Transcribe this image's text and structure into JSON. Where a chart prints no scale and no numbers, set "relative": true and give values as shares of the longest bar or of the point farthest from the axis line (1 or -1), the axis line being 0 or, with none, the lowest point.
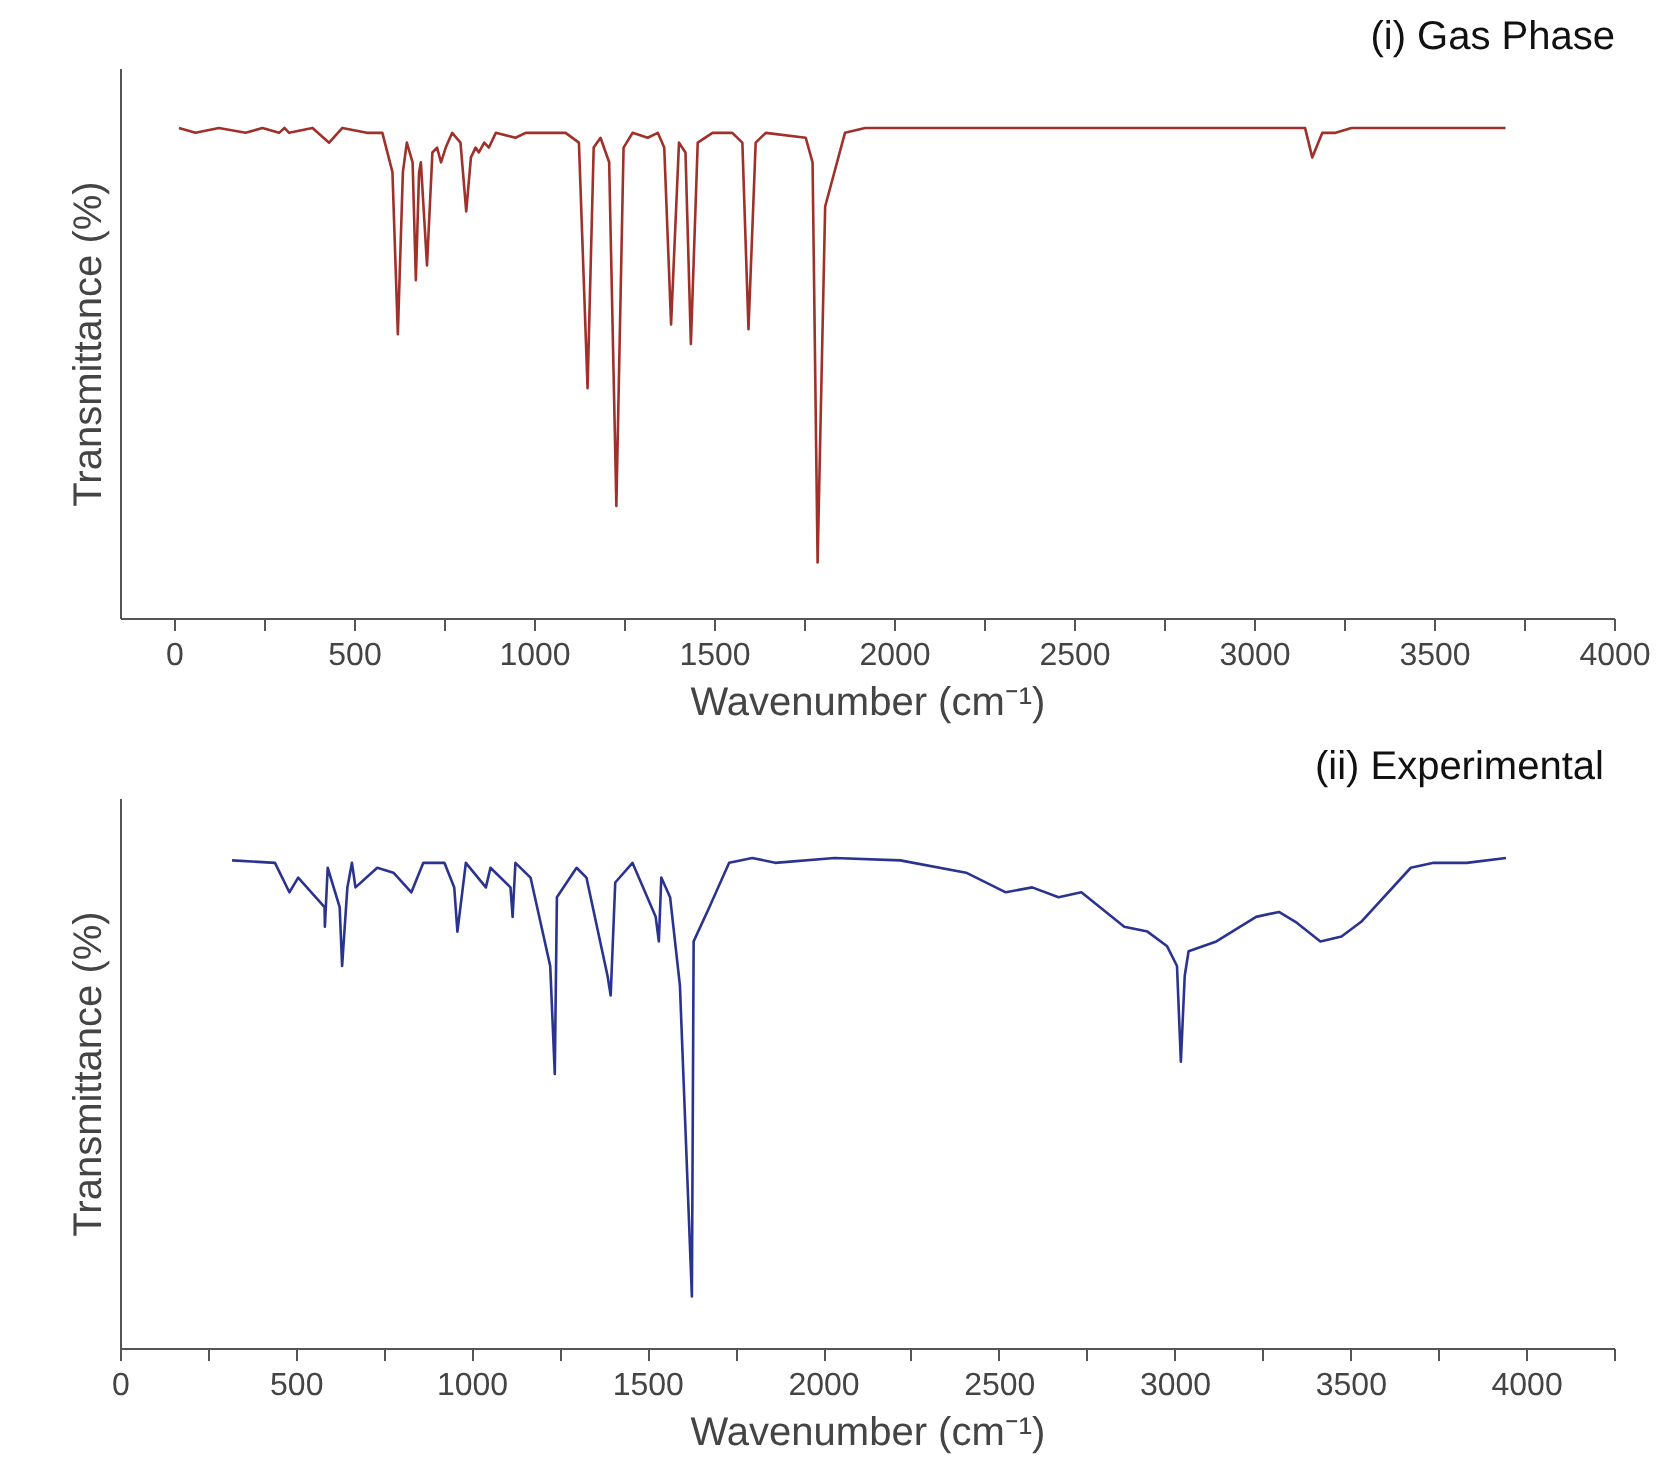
{
  "chart_data": [
    {
      "type": "line",
      "relative": true,
      "xlabel": "Wavenumber (cm⁻¹)",
      "ylabel": "Transmittance (%)",
      "annotations": [
        "(i) Gas Phase"
      ],
      "xlim": [
        -150,
        4000
      ],
      "xticks": [
        0,
        {
          "value": 250,
          "label": null
        },
        500,
        {
          "value": 750,
          "label": null
        },
        1000,
        {
          "value": 1250,
          "label": null
        },
        1500,
        {
          "value": 1750,
          "label": null
        },
        2000,
        {
          "value": 2250,
          "label": null
        },
        2500,
        {
          "value": 2750,
          "label": null
        },
        3000,
        {
          "value": 3250,
          "label": null
        },
        3500,
        {
          "value": 3750,
          "label": null
        },
        4000
      ],
      "grid": false,
      "series": [
        {
          "color": "#a0302a",
          "x": [
            11,
            57,
            122,
            196,
            243,
            289,
            304,
            317,
            382,
            428,
            465,
            533,
            576,
            604,
            619,
            633,
            644,
            660,
            669,
            678,
            683,
            700,
            715,
            728,
            739,
            752,
            770,
            793,
            809,
            822,
            835,
            844,
            859,
            872,
            891,
            946,
            974,
            1085,
            1122,
            1146,
            1163,
            1182,
            1206,
            1226,
            1246,
            1271,
            1313,
            1341,
            1359,
            1378,
            1400,
            1418,
            1433,
            1452,
            1493,
            1548,
            1576,
            1593,
            1613,
            1641,
            1752,
            1771,
            1785,
            1806,
            1861,
            1917,
            3139,
            3159,
            3187,
            3224,
            3268,
            3696
          ],
          "values": [
            1.0,
            0.99,
            1.0,
            0.99,
            1.0,
            0.99,
            1.0,
            0.99,
            1.0,
            0.97,
            1.0,
            0.99,
            0.99,
            0.91,
            0.58,
            0.91,
            0.97,
            0.93,
            0.69,
            0.91,
            0.93,
            0.72,
            0.95,
            0.96,
            0.93,
            0.96,
            0.99,
            0.97,
            0.83,
            0.94,
            0.96,
            0.95,
            0.97,
            0.96,
            0.99,
            0.98,
            0.99,
            0.99,
            0.97,
            0.47,
            0.96,
            0.98,
            0.93,
            0.23,
            0.96,
            0.99,
            0.98,
            0.99,
            0.96,
            0.6,
            0.97,
            0.95,
            0.56,
            0.97,
            0.99,
            0.99,
            0.97,
            0.59,
            0.97,
            0.99,
            0.98,
            0.93,
            0.115,
            0.84,
            0.99,
            1.0,
            1.0,
            0.94,
            0.99,
            0.99,
            1.0,
            1.0
          ]
        }
      ]
    },
    {
      "type": "line",
      "relative": true,
      "xlabel": "Wavenumber (cm⁻¹)",
      "ylabel": "Transmittance (%)",
      "annotations": [
        "(ii)  Experimental"
      ],
      "xlim": [
        0,
        4250
      ],
      "xticks": [
        0,
        {
          "value": 250,
          "label": null
        },
        500,
        {
          "value": 750,
          "label": null
        },
        1000,
        {
          "value": 1250,
          "label": null
        },
        1500,
        {
          "value": 1750,
          "label": null
        },
        2000,
        {
          "value": 2250,
          "label": null
        },
        2500,
        {
          "value": 2750,
          "label": null
        },
        3000,
        {
          "value": 3250,
          "label": null
        },
        3500,
        {
          "value": 3750,
          "label": null
        },
        4000,
        {
          "value": 4250,
          "label": null
        }
      ],
      "grid": false,
      "series": [
        {
          "color": "#2b3390",
          "x": [
            316,
            438,
            479,
            504,
            579,
            580,
            588,
            622,
            629,
            644,
            657,
            667,
            729,
            775,
            826,
            860,
            920,
            948,
            957,
            981,
            1038,
            1051,
            1108,
            1114,
            1122,
            1165,
            1221,
            1234,
            1240,
            1296,
            1324,
            1369,
            1384,
            1393,
            1406,
            1455,
            1521,
            1530,
            1537,
            1562,
            1590,
            1624,
            1629,
            1674,
            1730,
            1796,
            1861,
            2030,
            2217,
            2404,
            2517,
            2592,
            2667,
            2732,
            2854,
            2920,
            2976,
            3004,
            3015,
            3026,
            3037,
            3116,
            3229,
            3294,
            3341,
            3412,
            3472,
            3528,
            3669,
            3734,
            3828,
            3940
          ],
          "values": [
            0.995,
            0.99,
            0.93,
            0.96,
            0.9,
            0.86,
            0.98,
            0.9,
            0.78,
            0.94,
            0.99,
            0.94,
            0.98,
            0.97,
            0.93,
            0.99,
            0.99,
            0.94,
            0.85,
            0.99,
            0.94,
            0.98,
            0.94,
            0.88,
            0.99,
            0.96,
            0.78,
            0.56,
            0.92,
            0.98,
            0.96,
            0.81,
            0.76,
            0.72,
            0.95,
            0.99,
            0.88,
            0.83,
            0.96,
            0.92,
            0.74,
            0.107,
            0.83,
            0.9,
            0.99,
            1.0,
            0.99,
            1.0,
            0.995,
            0.97,
            0.93,
            0.94,
            0.92,
            0.93,
            0.86,
            0.85,
            0.82,
            0.78,
            0.585,
            0.76,
            0.81,
            0.83,
            0.88,
            0.89,
            0.87,
            0.83,
            0.84,
            0.87,
            0.98,
            0.99,
            0.99,
            1.0
          ]
        }
      ]
    }
  ]
}
